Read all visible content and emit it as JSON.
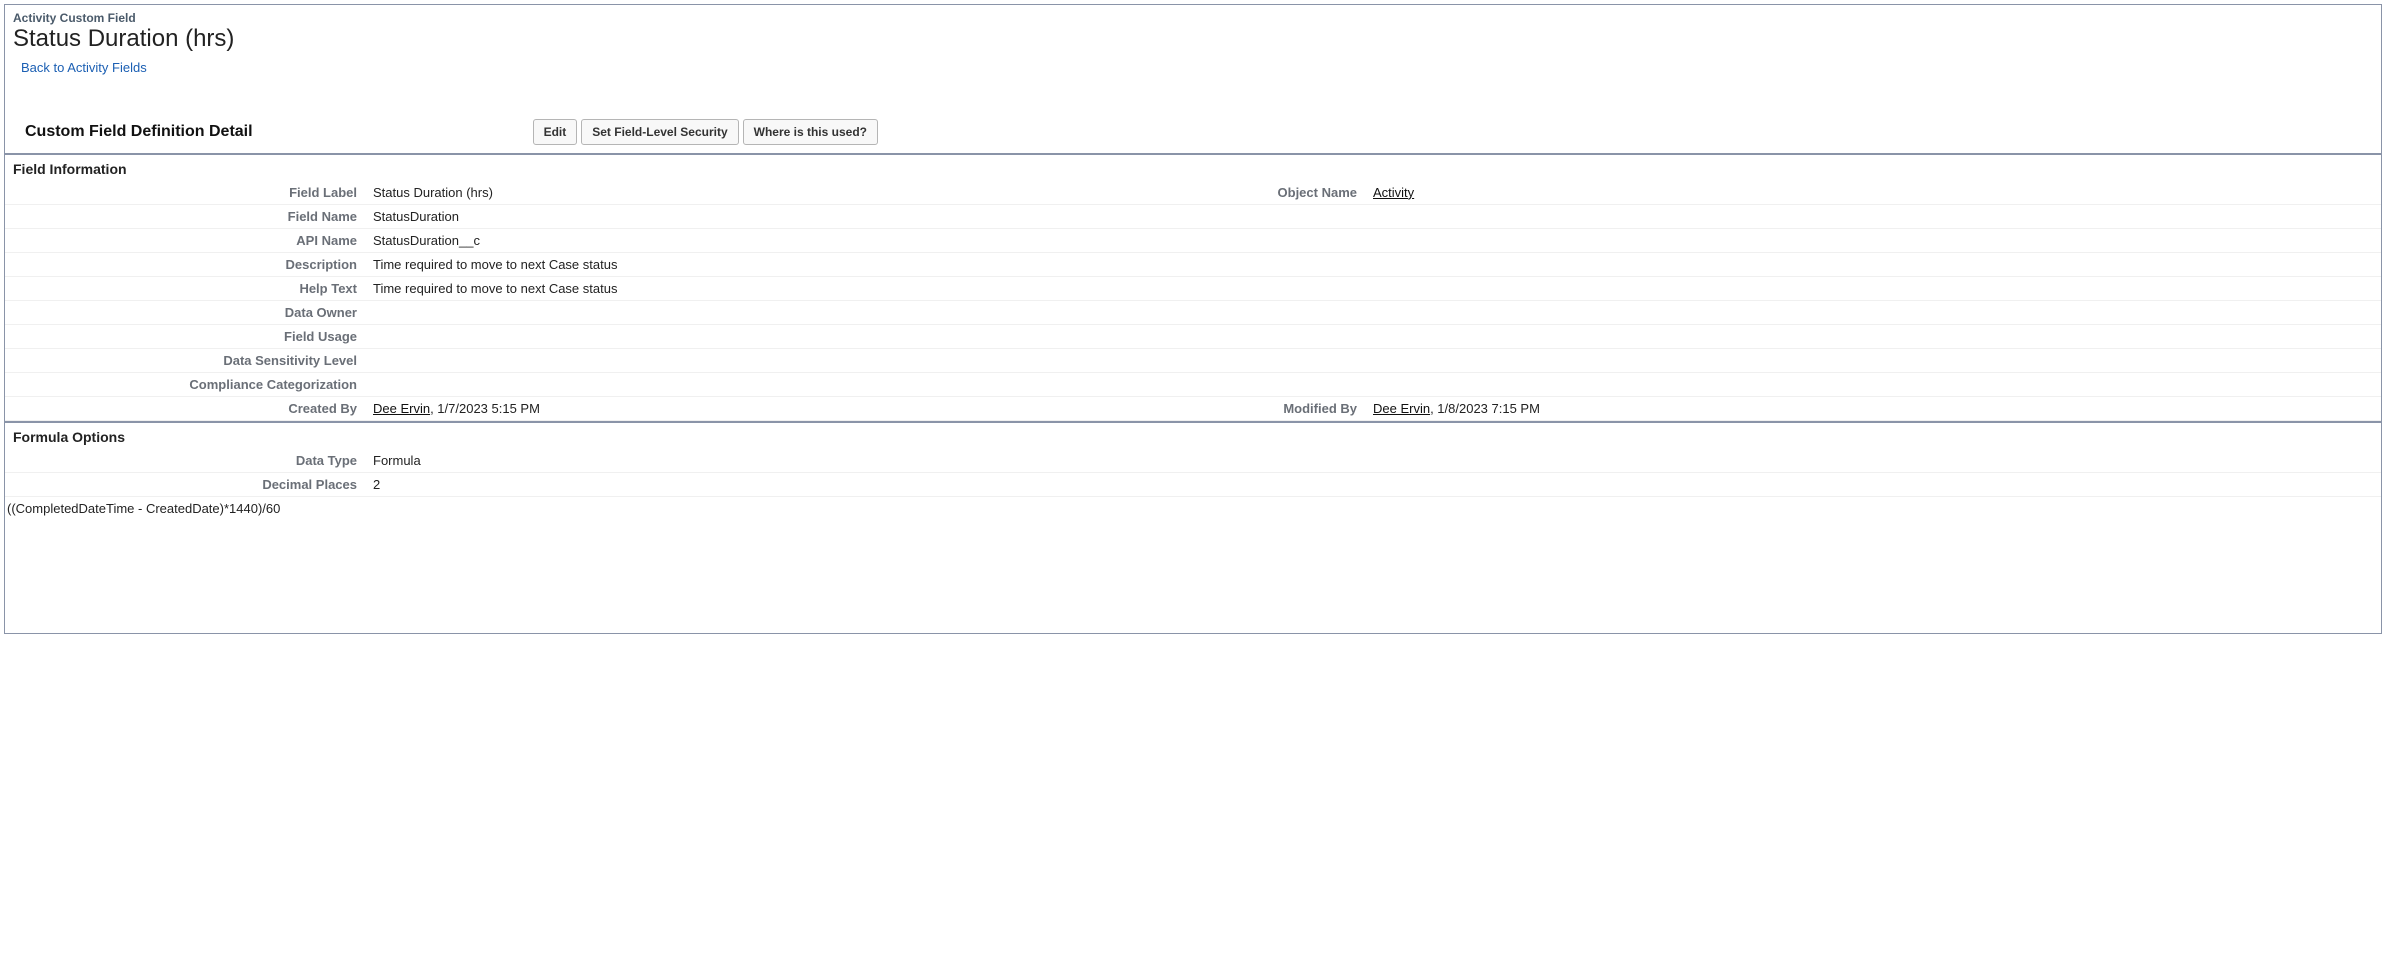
{
  "header": {
    "breadcrumb": "Activity Custom Field",
    "title": "Status Duration (hrs)",
    "back_link": "Back to Activity Fields"
  },
  "detail_header": {
    "title": "Custom Field Definition Detail",
    "buttons": {
      "edit": "Edit",
      "set_fls": "Set Field-Level Security",
      "where_used": "Where is this used?"
    }
  },
  "field_info": {
    "section_title": "Field Information",
    "labels": {
      "field_label": "Field Label",
      "field_name": "Field Name",
      "api_name": "API Name",
      "description": "Description",
      "help_text": "Help Text",
      "data_owner": "Data Owner",
      "field_usage": "Field Usage",
      "data_sensitivity": "Data Sensitivity Level",
      "compliance": "Compliance Categorization",
      "created_by": "Created By",
      "object_name": "Object Name",
      "modified_by": "Modified By"
    },
    "values": {
      "field_label": "Status Duration (hrs)",
      "field_name": "StatusDuration",
      "api_name": "StatusDuration__c",
      "description": "Time required to move to next Case status",
      "help_text": "Time required to move to next Case status",
      "data_owner": "",
      "field_usage": "",
      "data_sensitivity": "",
      "compliance": "",
      "created_by_name": "Dee Ervin",
      "created_by_date": ", 1/7/2023 5:15 PM",
      "object_name": "Activity",
      "modified_by_name": "Dee Ervin",
      "modified_by_date": ", 1/8/2023 7:15 PM"
    }
  },
  "formula_options": {
    "section_title": "Formula Options",
    "labels": {
      "data_type": "Data Type",
      "decimal_places": "Decimal Places"
    },
    "values": {
      "data_type": "Formula",
      "decimal_places": "2",
      "formula": "((CompletedDateTime - CreatedDate)*1440)/60"
    }
  },
  "colors": {
    "border": "#8a94a8",
    "label_text": "#6a6f77",
    "link": "#1b5fb3"
  }
}
